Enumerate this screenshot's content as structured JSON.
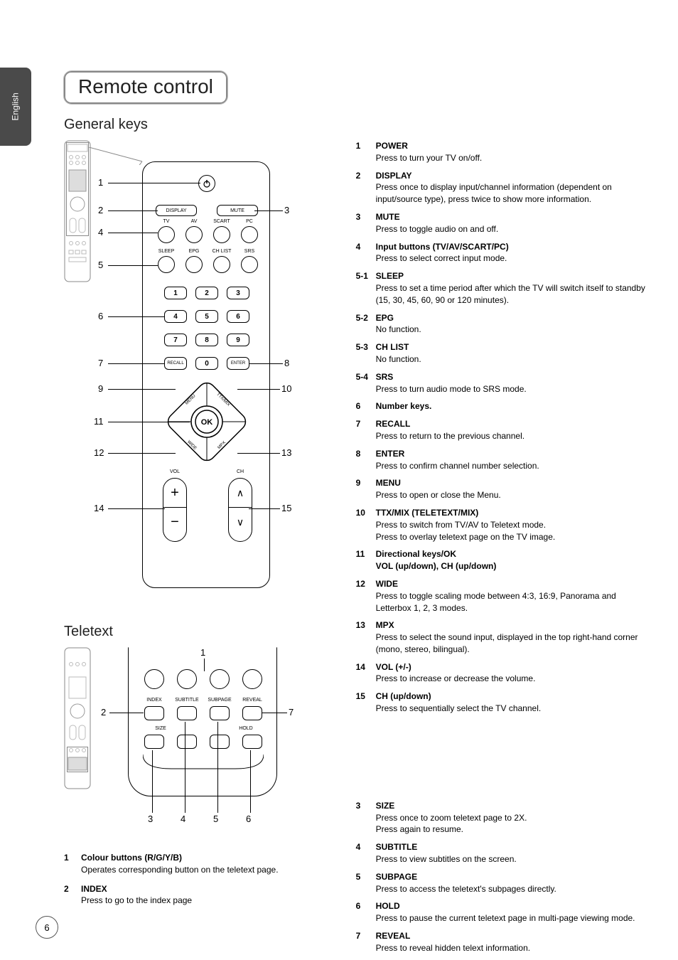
{
  "side_tab": "English",
  "page_number": "6",
  "title": "Remote control",
  "section1": {
    "heading": "General keys",
    "remote": {
      "row1": {
        "display": "DISPLAY",
        "mute": "MUTE"
      },
      "row2_labels": [
        "TV",
        "AV",
        "SCART",
        "PC"
      ],
      "row3_labels": [
        "SLEEP",
        "EPG",
        "CH LIST",
        "SRS"
      ],
      "numpad": [
        "1",
        "2",
        "3",
        "4",
        "5",
        "6",
        "7",
        "8",
        "9",
        "0"
      ],
      "recall": "RECALL",
      "enter": "ENTER",
      "menu": "MENU",
      "ttx": "TTX/MIX",
      "ok": "OK",
      "wide": "WIDE",
      "mpx": "MPX",
      "vol": "VOL",
      "ch": "CH"
    },
    "callouts_left": [
      "1",
      "2",
      "4",
      "5",
      "6",
      "7",
      "9",
      "11",
      "12",
      "14"
    ],
    "callouts_right": [
      "3",
      "8",
      "10",
      "13",
      "15"
    ],
    "descriptions": [
      {
        "n": "1",
        "t": "POWER",
        "d": "Press to turn your TV on/off."
      },
      {
        "n": "2",
        "t": "DISPLAY",
        "d": "Press once to display input/channel information (dependent on input/source type), press twice to show more information."
      },
      {
        "n": "3",
        "t": "MUTE",
        "d": "Press to toggle audio on and off."
      },
      {
        "n": "4",
        "t": "Input buttons (TV/AV/SCART/PC)",
        "d": "Press to select correct input mode."
      },
      {
        "n": "5-1",
        "t": "SLEEP",
        "d": "Press to set a time period after which the TV will switch itself to standby (15, 30, 45, 60, 90 or 120 minutes)."
      },
      {
        "n": "5-2",
        "t": "EPG",
        "d": "No function."
      },
      {
        "n": "5-3",
        "t": "CH LIST",
        "d": "No function."
      },
      {
        "n": "5-4",
        "t": "SRS",
        "d": "Press to turn audio mode to SRS mode."
      },
      {
        "n": "6",
        "t": "Number keys",
        "d": "."
      },
      {
        "n": "7",
        "t": "RECALL",
        "d": "Press to return to the previous channel."
      },
      {
        "n": "8",
        "t": "ENTER",
        "d": "Press to confirm channel number selection."
      },
      {
        "n": "9",
        "t": "MENU",
        "d": "Press to open or close the Menu."
      },
      {
        "n": "10",
        "t": "TTX/MIX (TELETEXT/MIX)",
        "d": "Press to switch from TV/AV to Teletext mode.\nPress to overlay teletext page on the TV image."
      },
      {
        "n": "11",
        "t": "Directional keys/OK",
        "d": "VOL (up/down), CH (up/down)",
        "bold_desc": true
      },
      {
        "n": "12",
        "t": "WIDE",
        "d": "Press to toggle scaling mode between 4:3, 16:9, Panorama and Letterbox 1, 2, 3 modes."
      },
      {
        "n": "13",
        "t": "MPX",
        "d": "Press to select the sound input, displayed in the top right-hand corner (mono, stereo, bilingual)."
      },
      {
        "n": "14",
        "t": "VOL (+/-)",
        "d": "Press to increase or decrease the volume."
      },
      {
        "n": "15",
        "t": "CH (up/down)",
        "d": "Press to sequentially select the TV channel."
      }
    ]
  },
  "section2": {
    "heading": "Teletext",
    "labels": [
      "INDEX",
      "SUBTITLE",
      "SUBPAGE",
      "REVEAL",
      "SIZE",
      "HOLD"
    ],
    "callouts": [
      "1",
      "2",
      "3",
      "4",
      "5",
      "6",
      "7"
    ],
    "left_desc": [
      {
        "n": "1",
        "t": "Colour buttons (R/G/Y/B)",
        "d": "Operates corresponding button on the teletext page."
      },
      {
        "n": "2",
        "t": "INDEX",
        "d": "Press to go to the index page"
      }
    ],
    "right_desc": [
      {
        "n": "3",
        "t": "SIZE",
        "d": "Press once to zoom teletext page to 2X.\nPress again to resume."
      },
      {
        "n": "4",
        "t": "SUBTITLE",
        "d": "Press to view subtitles on the screen."
      },
      {
        "n": "5",
        "t": "SUBPAGE",
        "d": "Press to access the teletext's subpages directly."
      },
      {
        "n": "6",
        "t": "HOLD",
        "d": "Press to pause the current teletext page in multi-page viewing mode."
      },
      {
        "n": "7",
        "t": "REVEAL",
        "d": "Press to reveal hidden telext information."
      }
    ]
  }
}
